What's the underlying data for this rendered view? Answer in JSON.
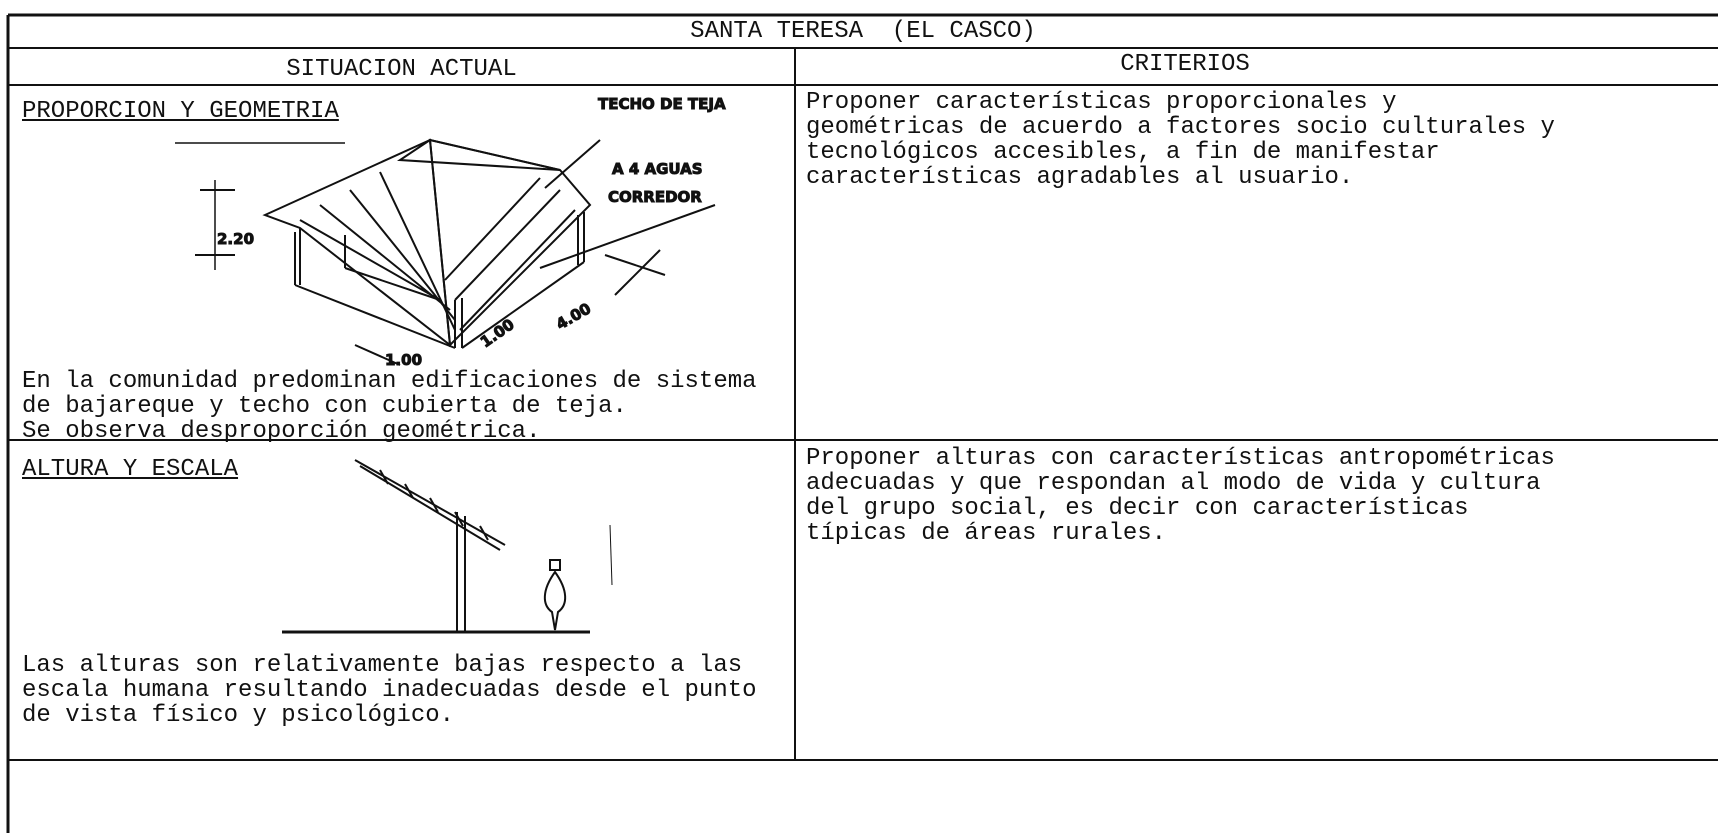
{
  "table": {
    "title": "SANTA TERESA  (EL CASCO)",
    "headers": [
      "SITUACION ACTUAL",
      "CRITERIOS"
    ],
    "rows": [
      {
        "heading": "PROPORCION Y GEOMETRIA",
        "sketch_labels": [
          "TECHO DE TEJA",
          "A 4 AGUAS",
          "CORREDOR",
          "2.20",
          "1.00",
          "1.00",
          "4.00"
        ],
        "text": [
          "En la comunidad predominan edificaciones de sistema",
          "de bajareque y techo con cubierta de teja.",
          "Se observa desproporción geométrica."
        ],
        "criteria": [
          "Proponer características proporcionales y",
          "geométricas de acuerdo a factores socio culturales y",
          "tecnológicos accesibles, a fin de manifestar",
          "características agradables al usuario."
        ]
      },
      {
        "heading": "ALTURA Y ESCALA",
        "text": [
          "Las alturas son relativamente bajas respecto a las",
          "escala humana resultando inadecuadas desde el punto",
          "de vista físico y psicológico."
        ],
        "criteria": [
          "Proponer alturas con características antropométricas",
          "adecuadas y que respondan al modo de vida y cultura",
          "del grupo social, es decir con características",
          "típicas de áreas rurales."
        ]
      }
    ]
  }
}
